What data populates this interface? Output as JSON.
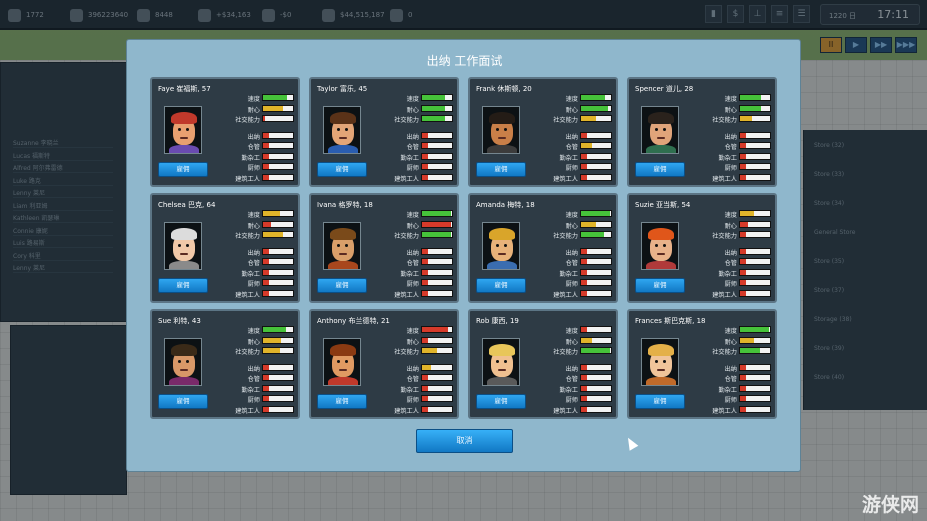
{
  "topbar": {
    "stats": [
      "1772",
      "396223640",
      "8448",
      "+$34,163",
      "-$0",
      "$44,515,187",
      "0"
    ],
    "date": "1220 日",
    "time": "17:11",
    "icons": [
      "chart-icon",
      "dollar-icon",
      "org-icon",
      "list-icon",
      "menu-icon"
    ]
  },
  "background": {
    "left_list": [
      "Suzanne 李晓兰",
      "Lucas 福斯特",
      "Alfred 阿尔弗雷德",
      "Luke 路克",
      "Lenny 莱尼",
      "Liam 利亚姆",
      "Kathleen 凯瑟琳",
      "Connie 康妮",
      "Luis 路易斯",
      "Cory 科里",
      "Lenny 莱尼"
    ],
    "right_list": [
      "Store (32)",
      "Store (33)",
      "Store (34)",
      "General Store",
      "Store (35)",
      "Store (37)",
      "Storage (38)",
      "Store (39)",
      "Store (40)"
    ],
    "watermark": "游侠网"
  },
  "modal": {
    "title": "出纳 工作面试",
    "hire_label": "雇佣",
    "cancel_label": "取消",
    "stat_labels": [
      "速度",
      "耐心",
      "社交能力",
      "出纳",
      "仓管",
      "勤杂工",
      "厨师",
      "建筑工人"
    ],
    "candidates": [
      {
        "name": "Faye 崔福斯, 57",
        "values": [
          0.8,
          0.65,
          0.05,
          0.2,
          0.2,
          0.2,
          0.2,
          0.2
        ],
        "colors": [
          "green",
          "yellow",
          "red",
          "red",
          "red",
          "red",
          "red",
          "red"
        ],
        "hair": "#c0392b",
        "skin": "#e8a070",
        "shirt": "#6a4bb0"
      },
      {
        "name": "Taylor 富乐, 45",
        "values": [
          0.75,
          0.75,
          0.75,
          0.2,
          0.2,
          0.2,
          0.2,
          0.2
        ],
        "colors": [
          "green",
          "green",
          "green",
          "red",
          "red",
          "red",
          "red",
          "red"
        ],
        "hair": "#5a3218",
        "skin": "#e3a577",
        "shirt": "#2a5db0"
      },
      {
        "name": "Frank 休斯顿, 20",
        "values": [
          0.8,
          0.9,
          0.5,
          0.2,
          0.35,
          0.2,
          0.2,
          0.2
        ],
        "colors": [
          "green",
          "green",
          "yellow",
          "red",
          "yellow",
          "red",
          "red",
          "red"
        ],
        "hair": "#241c16",
        "skin": "#c97f48",
        "shirt": "#3c3c3c"
      },
      {
        "name": "Spencer 道儿, 28",
        "values": [
          0.7,
          0.7,
          0.4,
          0.2,
          0.2,
          0.2,
          0.2,
          0.2
        ],
        "colors": [
          "green",
          "green",
          "yellow",
          "red",
          "red",
          "red",
          "red",
          "red"
        ],
        "hair": "#2a221c",
        "skin": "#e0a47a",
        "shirt": "#2f6f4f"
      },
      {
        "name": "Chelsea 巴克, 64",
        "values": [
          0.55,
          0.25,
          0.65,
          0.2,
          0.2,
          0.2,
          0.2,
          0.2
        ],
        "colors": [
          "yellow",
          "red",
          "yellow",
          "red",
          "red",
          "red",
          "red",
          "red"
        ],
        "hair": "#dcdcdc",
        "skin": "#f0c8a8",
        "shirt": "#8a8a8a"
      },
      {
        "name": "Ivana 格罗特, 18",
        "values": [
          0.95,
          0.95,
          0.95,
          0.2,
          0.2,
          0.2,
          0.2,
          0.2
        ],
        "colors": [
          "green",
          "red",
          "green",
          "red",
          "red",
          "red",
          "red",
          "red"
        ],
        "hair": "#7a4a1a",
        "skin": "#d99f6a",
        "shirt": "#a8471d"
      },
      {
        "name": "Amanda 梅特, 18",
        "values": [
          0.95,
          0.5,
          0.75,
          0.2,
          0.2,
          0.2,
          0.2,
          0.2
        ],
        "colors": [
          "green",
          "yellow",
          "green",
          "red",
          "red",
          "red",
          "red",
          "red"
        ],
        "hair": "#d9a52a",
        "skin": "#e8b27a",
        "shirt": "#3a6db0"
      },
      {
        "name": "Suzie 亚当斯, 54",
        "values": [
          0.45,
          0.25,
          0.2,
          0.2,
          0.2,
          0.2,
          0.2,
          0.2
        ],
        "colors": [
          "yellow",
          "red",
          "red",
          "red",
          "red",
          "red",
          "red",
          "red"
        ],
        "hair": "#e0561a",
        "skin": "#e8b28a",
        "shirt": "#b03a3a"
      },
      {
        "name": "Sue 利特, 43",
        "values": [
          0.75,
          0.6,
          0.55,
          0.2,
          0.2,
          0.2,
          0.2,
          0.2
        ],
        "colors": [
          "green",
          "yellow",
          "yellow",
          "red",
          "red",
          "red",
          "red",
          "red"
        ],
        "hair": "#3a2a18",
        "skin": "#d89868",
        "shirt": "#7a2a6a"
      },
      {
        "name": "Anthony 布兰德特, 21",
        "values": [
          0.85,
          0.2,
          0.5,
          0.3,
          0.2,
          0.2,
          0.2,
          0.2
        ],
        "colors": [
          "red",
          "red",
          "yellow",
          "yellow",
          "red",
          "red",
          "red",
          "red"
        ],
        "hair": "#8a3a12",
        "skin": "#e09a62",
        "shirt": "#c0392b"
      },
      {
        "name": "Rob 康西, 19",
        "values": [
          0.2,
          0.35,
          0.95,
          0.2,
          0.2,
          0.2,
          0.2,
          0.2
        ],
        "colors": [
          "red",
          "yellow",
          "green",
          "red",
          "red",
          "red",
          "red",
          "red"
        ],
        "hair": "#e8c65a",
        "skin": "#f0c090",
        "shirt": "#5a5a5a"
      },
      {
        "name": "Frances 斯巴克斯, 18",
        "values": [
          0.95,
          0.45,
          0.65,
          0.2,
          0.2,
          0.2,
          0.2,
          0.2
        ],
        "colors": [
          "green",
          "yellow",
          "green",
          "red",
          "red",
          "red",
          "red",
          "red"
        ],
        "hair": "#e4b048",
        "skin": "#f0c49a",
        "shirt": "#c06a2a"
      }
    ]
  },
  "palette": {
    "green": "#46c23a",
    "yellow": "#e0b42a",
    "red": "#d63a2a"
  }
}
